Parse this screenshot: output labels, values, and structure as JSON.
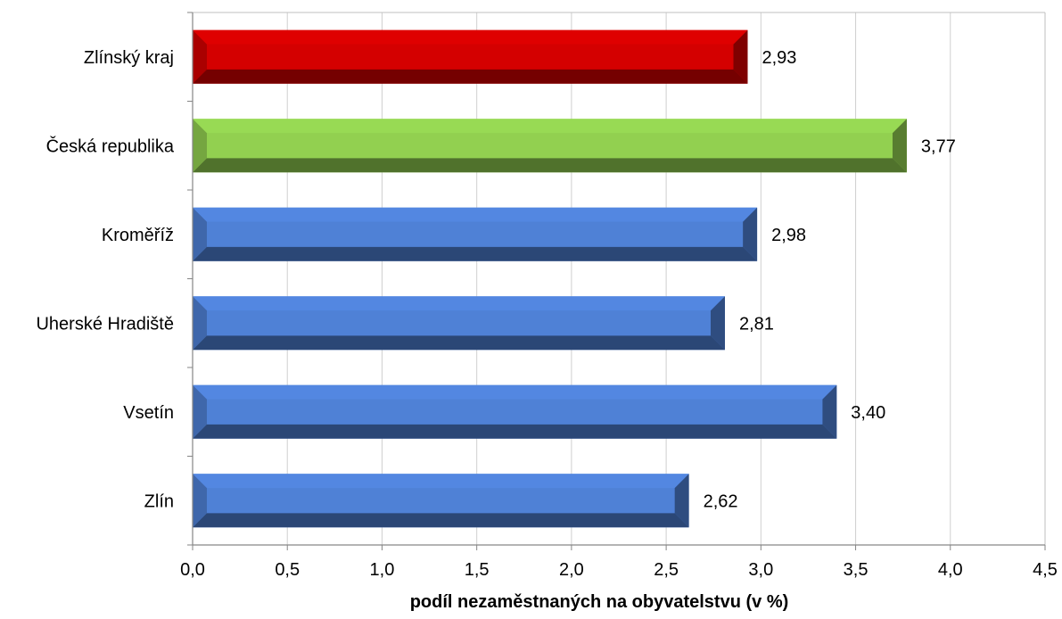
{
  "chart_data": {
    "type": "bar",
    "orientation": "horizontal",
    "categories": [
      "Zlínský kraj",
      "Česká republika",
      "Kroměříž",
      "Uherské Hradiště",
      "Vsetín",
      "Zlín"
    ],
    "values": [
      2.93,
      3.77,
      2.98,
      2.81,
      3.4,
      2.62
    ],
    "value_labels": [
      "2,93",
      "3,77",
      "2,98",
      "2,81",
      "3,40",
      "2,62"
    ],
    "bar_colors": [
      "#d40000",
      "#92d050",
      "#4f81d6",
      "#4f81d6",
      "#4f81d6",
      "#4f81d6"
    ],
    "xlabel": "podíl nezaměstnaných na obyvatelstvu (v %)",
    "ylabel": "",
    "xlim": [
      0,
      4.5
    ],
    "xticks": [
      0,
      0.5,
      1.0,
      1.5,
      2.0,
      2.5,
      3.0,
      3.5,
      4.0,
      4.5
    ],
    "xtick_labels": [
      "0,0",
      "0,5",
      "1,0",
      "1,5",
      "2,0",
      "2,5",
      "3,0",
      "3,5",
      "4,0",
      "4,5"
    ],
    "grid": "vertical",
    "legend": "none"
  }
}
